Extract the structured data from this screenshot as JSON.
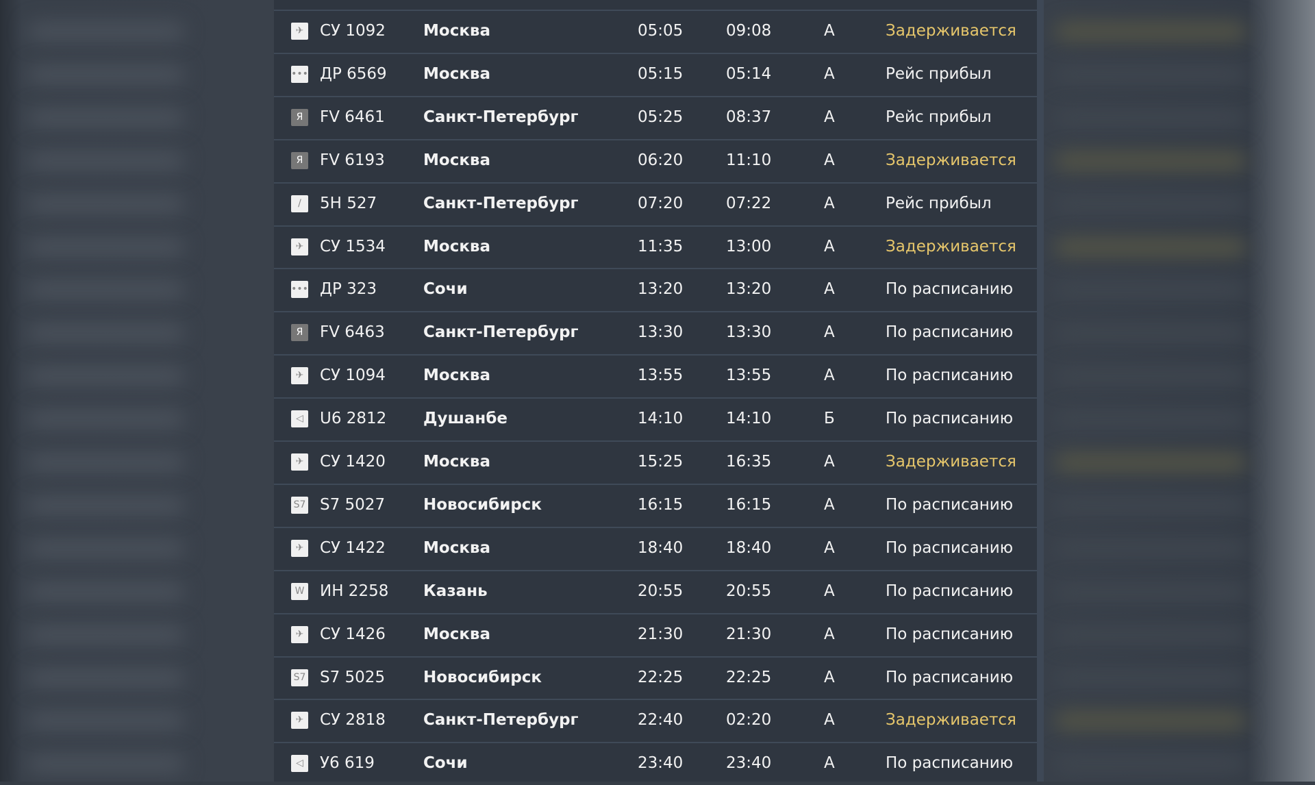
{
  "colors": {
    "delayed": "#e6c66b",
    "normal": "#f2f2f2",
    "panel": "#2f3640"
  },
  "flights": [
    {
      "icon": "aeroflot-logo-icon",
      "flight": "СУ 1092",
      "city": "Москва",
      "scheduled": "05:05",
      "actual": "09:08",
      "terminal": "А",
      "status": "Задерживается",
      "delayed": true
    },
    {
      "icon": "rossiya-dots-logo-icon",
      "flight": "ДР 6569",
      "city": "Москва",
      "scheduled": "05:15",
      "actual": "05:14",
      "terminal": "А",
      "status": "Рейс прибыл",
      "delayed": false
    },
    {
      "icon": "rossiya-r-logo-icon",
      "flight": "FV 6461",
      "city": "Санкт-Петербург",
      "scheduled": "05:25",
      "actual": "08:37",
      "terminal": "А",
      "status": "Рейс прибыл",
      "delayed": false
    },
    {
      "icon": "rossiya-r-logo-icon",
      "flight": "FV 6193",
      "city": "Москва",
      "scheduled": "06:20",
      "actual": "11:10",
      "terminal": "А",
      "status": "Задерживается",
      "delayed": true
    },
    {
      "icon": "nordwind-logo-icon",
      "flight": "5Н 527",
      "city": "Санкт-Петербург",
      "scheduled": "07:20",
      "actual": "07:22",
      "terminal": "А",
      "status": "Рейс прибыл",
      "delayed": false
    },
    {
      "icon": "aeroflot-logo-icon",
      "flight": "СУ 1534",
      "city": "Москва",
      "scheduled": "11:35",
      "actual": "13:00",
      "terminal": "А",
      "status": "Задерживается",
      "delayed": true
    },
    {
      "icon": "rossiya-dots-logo-icon",
      "flight": "ДР 323",
      "city": "Сочи",
      "scheduled": "13:20",
      "actual": "13:20",
      "terminal": "А",
      "status": "По расписанию",
      "delayed": false
    },
    {
      "icon": "rossiya-r-logo-icon",
      "flight": "FV 6463",
      "city": "Санкт-Петербург",
      "scheduled": "13:30",
      "actual": "13:30",
      "terminal": "А",
      "status": "По расписанию",
      "delayed": false
    },
    {
      "icon": "aeroflot-logo-icon",
      "flight": "СУ 1094",
      "city": "Москва",
      "scheduled": "13:55",
      "actual": "13:55",
      "terminal": "А",
      "status": "По расписанию",
      "delayed": false
    },
    {
      "icon": "ural-logo-icon",
      "flight": "U6 2812",
      "city": "Душанбе",
      "scheduled": "14:10",
      "actual": "14:10",
      "terminal": "Б",
      "status": "По расписанию",
      "delayed": false
    },
    {
      "icon": "aeroflot-logo-icon",
      "flight": "СУ 1420",
      "city": "Москва",
      "scheduled": "15:25",
      "actual": "16:35",
      "terminal": "А",
      "status": "Задерживается",
      "delayed": true
    },
    {
      "icon": "s7-logo-icon",
      "flight": "S7 5027",
      "city": "Новосибирск",
      "scheduled": "16:15",
      "actual": "16:15",
      "terminal": "А",
      "status": "По расписанию",
      "delayed": false
    },
    {
      "icon": "aeroflot-logo-icon",
      "flight": "СУ 1422",
      "city": "Москва",
      "scheduled": "18:40",
      "actual": "18:40",
      "terminal": "А",
      "status": "По расписанию",
      "delayed": false
    },
    {
      "icon": "red-wings-logo-icon",
      "flight": "ИН 2258",
      "city": "Казань",
      "scheduled": "20:55",
      "actual": "20:55",
      "terminal": "А",
      "status": "По расписанию",
      "delayed": false
    },
    {
      "icon": "aeroflot-logo-icon",
      "flight": "СУ 1426",
      "city": "Москва",
      "scheduled": "21:30",
      "actual": "21:30",
      "terminal": "А",
      "status": "По расписанию",
      "delayed": false
    },
    {
      "icon": "s7-logo-icon",
      "flight": "S7 5025",
      "city": "Новосибирск",
      "scheduled": "22:25",
      "actual": "22:25",
      "terminal": "А",
      "status": "По расписанию",
      "delayed": false
    },
    {
      "icon": "aeroflot-logo-icon",
      "flight": "СУ 2818",
      "city": "Санкт-Петербург",
      "scheduled": "22:40",
      "actual": "02:20",
      "terminal": "А",
      "status": "Задерживается",
      "delayed": true
    },
    {
      "icon": "ural-logo-icon",
      "flight": "У6 619",
      "city": "Сочи",
      "scheduled": "23:40",
      "actual": "23:40",
      "terminal": "А",
      "status": "По расписанию",
      "delayed": false
    }
  ]
}
